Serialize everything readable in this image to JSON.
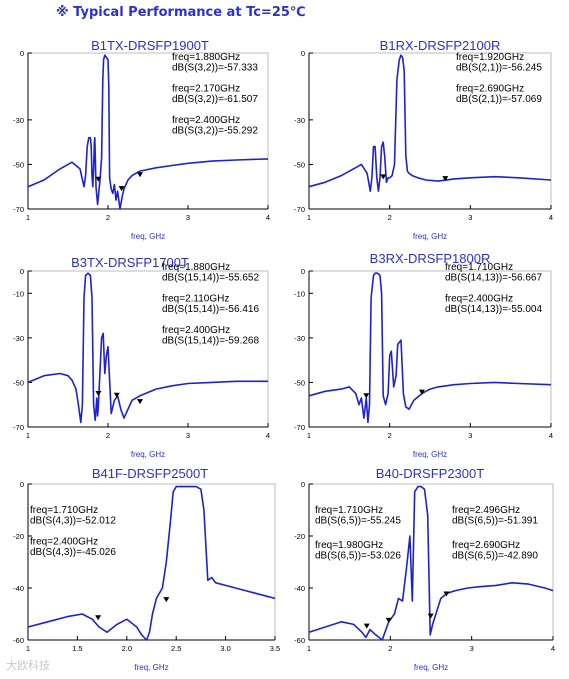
{
  "header": {
    "title": "※ Typical Performance at Tc=25℃"
  },
  "watermark": "大欧科技",
  "colors": {
    "trace": "#1c22d4",
    "title": "#2b2fd8",
    "axis": "#000000",
    "frame": "#bdbdbd"
  },
  "chart_data": [
    {
      "type": "line",
      "title": "B1TX-DRSFP1900T",
      "xlabel": "freq, GHz",
      "xlim": [
        1,
        4
      ],
      "ylim": [
        -70,
        0
      ],
      "xticks": [
        1,
        2,
        3,
        4
      ],
      "xtick_labels": [
        "1",
        "2",
        "3",
        "4"
      ],
      "yticks": [
        0,
        -30,
        -50,
        -70
      ],
      "ytick_labels": [
        "0",
        "-30",
        "-50",
        "-70"
      ],
      "grid": false,
      "series": [
        {
          "x": [
            1.0,
            1.2,
            1.4,
            1.55,
            1.65,
            1.7,
            1.72,
            1.74,
            1.76,
            1.78,
            1.79,
            1.8,
            1.81,
            1.82,
            1.83,
            1.835,
            1.84,
            1.85,
            1.87,
            1.9,
            1.92,
            1.935,
            1.945,
            1.96,
            1.98,
            2.0,
            2.01,
            2.02,
            2.04,
            2.06,
            2.08,
            2.1,
            2.12,
            2.15,
            2.18,
            2.2,
            2.25,
            2.3,
            2.4,
            2.6,
            2.8,
            3.0,
            3.3,
            3.6,
            4.0
          ],
          "y": [
            -60,
            -57,
            -52,
            -49,
            -52,
            -60,
            -55,
            -42,
            -38,
            -38,
            -42,
            -55,
            -60,
            -52,
            -40,
            -38,
            -45,
            -60,
            -68,
            -57,
            -47,
            -12,
            -3,
            -1,
            -2,
            -3,
            -15,
            -56,
            -61,
            -63,
            -59,
            -66,
            -62,
            -70,
            -64,
            -61,
            -57,
            -55,
            -53,
            -51.5,
            -50.5,
            -49.5,
            -48.5,
            -48,
            -47.5
          ]
        }
      ],
      "markers": [
        {
          "freq": 1.88,
          "db": -57.333,
          "freq_label": "freq=1.880GHz",
          "db_label": "dB(S(3,2))=-57.333"
        },
        {
          "freq": 2.17,
          "db": -61.507,
          "freq_label": "freq=2.170GHz",
          "db_label": "dB(S(3,2))=-61.507"
        },
        {
          "freq": 2.4,
          "db": -55.292,
          "freq_label": "freq=2.400GHz",
          "db_label": "dB(S(3,2))=-55.292"
        }
      ]
    },
    {
      "type": "line",
      "title": "B1RX-DRSFP2100R",
      "xlabel": "freq, GHz",
      "xlim": [
        1,
        4
      ],
      "ylim": [
        -70,
        0
      ],
      "xticks": [
        1,
        2,
        3,
        4
      ],
      "xtick_labels": [
        "1",
        "2",
        "3",
        "4"
      ],
      "yticks": [
        0,
        -30,
        -50,
        -70
      ],
      "ytick_labels": [
        "0",
        "-30",
        "-50",
        "-70"
      ],
      "grid": false,
      "series": [
        {
          "x": [
            1.0,
            1.2,
            1.4,
            1.55,
            1.65,
            1.72,
            1.76,
            1.78,
            1.8,
            1.82,
            1.84,
            1.86,
            1.88,
            1.9,
            1.92,
            1.94,
            1.96,
            1.98,
            2.0,
            2.03,
            2.06,
            2.09,
            2.12,
            2.14,
            2.16,
            2.18,
            2.2,
            2.22,
            2.24,
            2.28,
            2.35,
            2.45,
            2.6,
            2.8,
            3.0,
            3.3,
            3.6,
            4.0
          ],
          "y": [
            -60,
            -58,
            -55,
            -52,
            -50,
            -54,
            -62,
            -56,
            -42,
            -42,
            -56,
            -62,
            -56,
            -42,
            -40,
            -47,
            -58,
            -56,
            -56,
            -55,
            -50,
            -12,
            -3,
            -1,
            -2,
            -8,
            -46,
            -53,
            -54,
            -55,
            -56,
            -57,
            -57.5,
            -56.5,
            -56,
            -55.5,
            -56,
            -57
          ]
        }
      ],
      "markers": [
        {
          "freq": 1.92,
          "db": -56.245,
          "freq_label": "freq=1.920GHz",
          "db_label": "dB(S(2,1))=-56.245"
        },
        {
          "freq": 2.69,
          "db": -57.069,
          "freq_label": "freq=2.690GHz",
          "db_label": "dB(S(2,1))=-57.069"
        }
      ]
    },
    {
      "type": "line",
      "title": "B3TX-DRSFP1700T",
      "xlabel": "freq, GHz",
      "xlim": [
        1,
        4
      ],
      "ylim": [
        -70,
        0
      ],
      "xticks": [
        1,
        2,
        3,
        4
      ],
      "xtick_labels": [
        "1",
        "2",
        "3",
        "4"
      ],
      "yticks": [
        0,
        -10,
        -30,
        -50,
        -70
      ],
      "ytick_labels": [
        "0",
        "-10",
        "-30",
        "-50",
        "-70"
      ],
      "grid": false,
      "series": [
        {
          "x": [
            1.0,
            1.2,
            1.4,
            1.5,
            1.55,
            1.6,
            1.63,
            1.66,
            1.68,
            1.7,
            1.72,
            1.75,
            1.78,
            1.8,
            1.82,
            1.84,
            1.86,
            1.87,
            1.88,
            1.9,
            1.92,
            1.94,
            1.96,
            1.98,
            2.0,
            2.04,
            2.08,
            2.12,
            2.16,
            2.2,
            2.25,
            2.3,
            2.4,
            2.6,
            2.8,
            3.0,
            3.3,
            3.6,
            4.0
          ],
          "y": [
            -50,
            -47,
            -46,
            -47,
            -49,
            -53,
            -60,
            -68,
            -60,
            -12,
            -2,
            -1,
            -2,
            -12,
            -60,
            -67,
            -57,
            -65,
            -60,
            -45,
            -30,
            -28,
            -46,
            -38,
            -34,
            -64,
            -58,
            -56,
            -62,
            -66,
            -62,
            -58,
            -56,
            -53,
            -51.5,
            -50.5,
            -50,
            -49.5,
            -49.5
          ]
        }
      ],
      "markers": [
        {
          "freq": 1.88,
          "db": -55.652,
          "freq_label": "freq=1.880GHz",
          "db_label": "dB(S(15,14))=-55.652"
        },
        {
          "freq": 2.11,
          "db": -56.416,
          "freq_label": "freq=2.110GHz",
          "db_label": "dB(S(15,14))=-56.416"
        },
        {
          "freq": 2.4,
          "db": -59.268,
          "freq_label": "freq=2.400GHz",
          "db_label": "dB(S(15,14))=-59.268"
        }
      ]
    },
    {
      "type": "line",
      "title": "B3RX-DRSFP1800R",
      "xlabel": "freq, GHz",
      "xlim": [
        1,
        4
      ],
      "ylim": [
        -70,
        0
      ],
      "xticks": [
        1,
        2,
        3,
        4
      ],
      "xtick_labels": [
        "1",
        "2",
        "3",
        "4"
      ],
      "yticks": [
        0,
        -10,
        -30,
        -50,
        -70
      ],
      "ytick_labels": [
        "0",
        "-10",
        "-30",
        "-50",
        "-70"
      ],
      "grid": false,
      "series": [
        {
          "x": [
            1.0,
            1.2,
            1.4,
            1.5,
            1.58,
            1.62,
            1.65,
            1.68,
            1.71,
            1.73,
            1.75,
            1.77,
            1.8,
            1.82,
            1.85,
            1.88,
            1.9,
            1.92,
            1.95,
            1.98,
            2.0,
            2.02,
            2.05,
            2.08,
            2.1,
            2.14,
            2.17,
            2.2,
            2.24,
            2.3,
            2.4,
            2.5,
            2.6,
            2.8,
            3.0,
            3.3,
            3.6,
            4.0
          ],
          "y": [
            -56,
            -54,
            -53,
            -52,
            -55,
            -60,
            -57,
            -66,
            -57,
            -68,
            -60,
            -12,
            -2,
            -1,
            -1,
            -2,
            -10,
            -56,
            -60,
            -55,
            -38,
            -36,
            -52,
            -47,
            -33,
            -31,
            -55,
            -61,
            -62,
            -58,
            -55,
            -53,
            -52,
            -51,
            -50.5,
            -50,
            -50.5,
            -51
          ]
        }
      ],
      "markers": [
        {
          "freq": 1.71,
          "db": -56.667,
          "freq_label": "freq=1.710GHz",
          "db_label": "dB(S(14,13))=-56.667"
        },
        {
          "freq": 2.4,
          "db": -55.004,
          "freq_label": "freq=2.400GHz",
          "db_label": "dB(S(14,13))=-55.004"
        }
      ]
    },
    {
      "type": "line",
      "title": "B41F-DRSFP2500T",
      "xlabel": "freq, GHz",
      "xlim": [
        1,
        3.5
      ],
      "ylim": [
        -60,
        0
      ],
      "xticks": [
        1.0,
        1.5,
        2.0,
        2.5,
        3.0,
        3.5
      ],
      "xtick_labels": [
        "1",
        "1.5",
        "2.0",
        "2.5",
        "3.0",
        "3.5"
      ],
      "yticks": [
        0,
        -20,
        -40,
        -60
      ],
      "ytick_labels": [
        "0",
        "-20",
        "-40",
        "-60"
      ],
      "grid": false,
      "series": [
        {
          "x": [
            1.0,
            1.2,
            1.4,
            1.55,
            1.65,
            1.72,
            1.8,
            1.9,
            2.0,
            2.1,
            2.15,
            2.2,
            2.23,
            2.26,
            2.3,
            2.36,
            2.4,
            2.44,
            2.47,
            2.5,
            2.55,
            2.6,
            2.65,
            2.7,
            2.75,
            2.78,
            2.82,
            2.86,
            2.9,
            3.0,
            3.2,
            3.4,
            3.5
          ],
          "y": [
            -55,
            -53,
            -51,
            -50,
            -52,
            -55,
            -57,
            -54,
            -52,
            -55,
            -58,
            -60,
            -57,
            -50,
            -44,
            -40,
            -30,
            -15,
            -3,
            -1,
            -1,
            -1,
            -1,
            -1,
            -2,
            -10,
            -37,
            -36,
            -38,
            -39,
            -41,
            -43,
            -44
          ]
        }
      ],
      "markers": [
        {
          "freq": 1.71,
          "db": -52.012,
          "freq_label": "freq=1.710GHz",
          "db_label": "dB(S(4,3))=-52.012"
        },
        {
          "freq": 2.4,
          "db": -45.026,
          "freq_label": "freq=2.400GHz",
          "db_label": "dB(S(4,3))=-45.026"
        }
      ]
    },
    {
      "type": "line",
      "title": "B40-DRSFP2300T",
      "xlabel": "freq, GHz",
      "xlim": [
        1,
        4
      ],
      "ylim": [
        -60,
        0
      ],
      "xticks": [
        1,
        2,
        3,
        4
      ],
      "xtick_labels": [
        "1",
        "2",
        "3",
        "4"
      ],
      "yticks": [
        0,
        -20,
        -40,
        -60
      ],
      "ytick_labels": [
        "0",
        "-20",
        "-40",
        "-60"
      ],
      "grid": false,
      "series": [
        {
          "x": [
            1.0,
            1.2,
            1.4,
            1.55,
            1.65,
            1.7,
            1.75,
            1.82,
            1.9,
            1.98,
            2.05,
            2.1,
            2.15,
            2.2,
            2.24,
            2.27,
            2.3,
            2.34,
            2.38,
            2.42,
            2.46,
            2.49,
            2.52,
            2.56,
            2.62,
            2.7,
            2.8,
            2.95,
            3.1,
            3.3,
            3.5,
            3.7,
            3.9,
            4.0
          ],
          "y": [
            -57,
            -55,
            -53,
            -54,
            -57,
            -59,
            -56,
            -58,
            -60,
            -53,
            -50,
            -44,
            -45,
            -32,
            -20,
            -45,
            -3,
            -1,
            -1,
            -2,
            -12,
            -58,
            -54,
            -50,
            -44,
            -42,
            -41,
            -40,
            -39.5,
            -39,
            -38,
            -38.5,
            -40,
            -41
          ]
        }
      ],
      "markers": [
        {
          "freq": 1.71,
          "db": -55.245,
          "freq_label": "freq=1.710GHz",
          "db_label": "dB(S(6,5))=-55.245"
        },
        {
          "freq": 1.98,
          "db": -53.026,
          "freq_label": "freq=1.980GHz",
          "db_label": "dB(S(6,5))=-53.026"
        },
        {
          "freq": 2.496,
          "db": -51.391,
          "freq_label": "freq=2.496GHz",
          "db_label": "dB(S(6,5))=-51.391"
        },
        {
          "freq": 2.69,
          "db": -42.89,
          "freq_label": "freq=2.690GHz",
          "db_label": "dB(S(6,5))=-42.890"
        }
      ]
    }
  ]
}
